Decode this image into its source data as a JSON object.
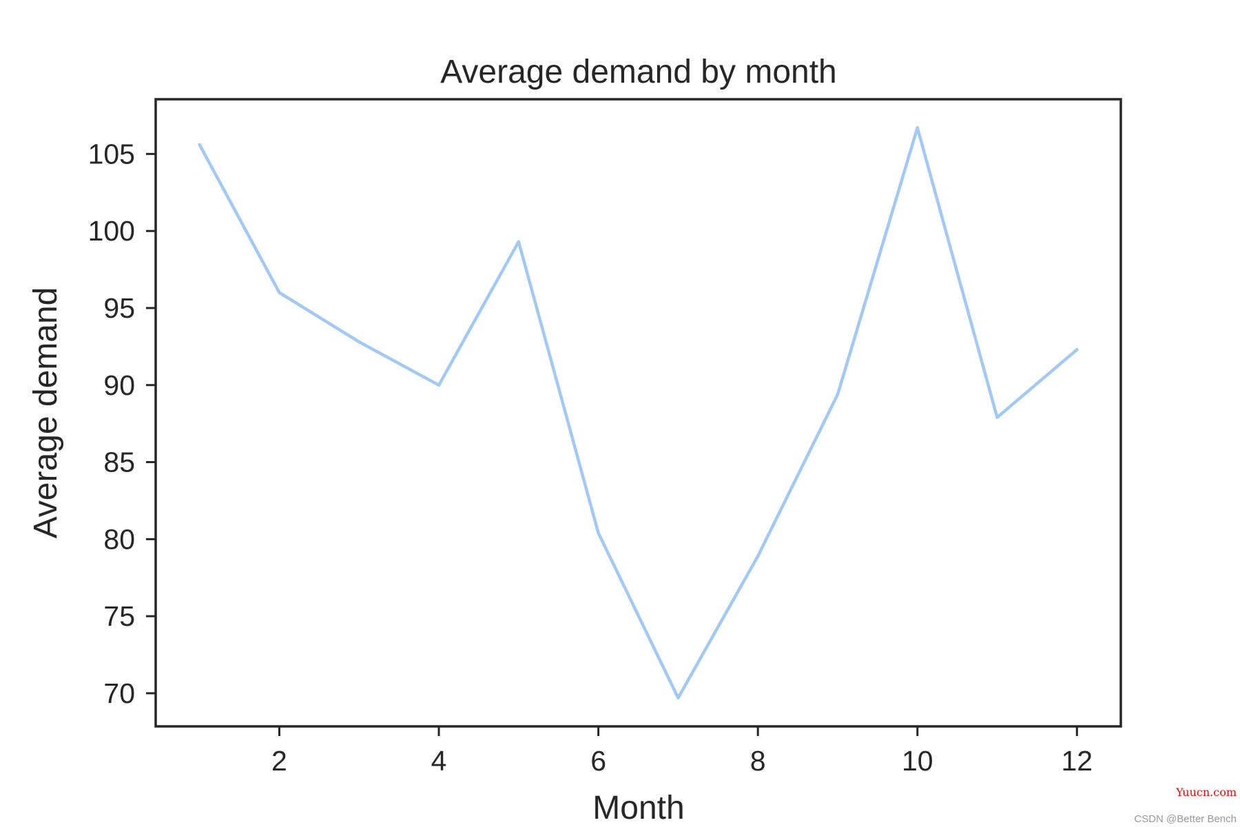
{
  "chart_data": {
    "type": "line",
    "title": "Average demand by month",
    "xlabel": "Month",
    "ylabel": "Average demand",
    "x": [
      1,
      2,
      3,
      4,
      5,
      6,
      7,
      8,
      9,
      10,
      11,
      12
    ],
    "series": [
      {
        "name": "Average demand",
        "values": [
          105.6,
          96.0,
          92.8,
          90.0,
          99.3,
          80.4,
          69.7,
          78.9,
          89.4,
          106.7,
          87.9,
          92.3
        ]
      }
    ],
    "xticks": [
      2,
      4,
      6,
      8,
      10,
      12
    ],
    "yticks": [
      70,
      75,
      80,
      85,
      90,
      95,
      100,
      105
    ],
    "xlim": [
      0.45,
      12.55
    ],
    "ylim": [
      67.85,
      108.55
    ],
    "grid": false,
    "line_color": "#a1c9f4",
    "axis_color": "#262626"
  },
  "watermarks": {
    "site": "Yuucn.com",
    "site_color": "#ff0000",
    "author": "CSDN @Better Bench",
    "author_color": "#999999"
  }
}
